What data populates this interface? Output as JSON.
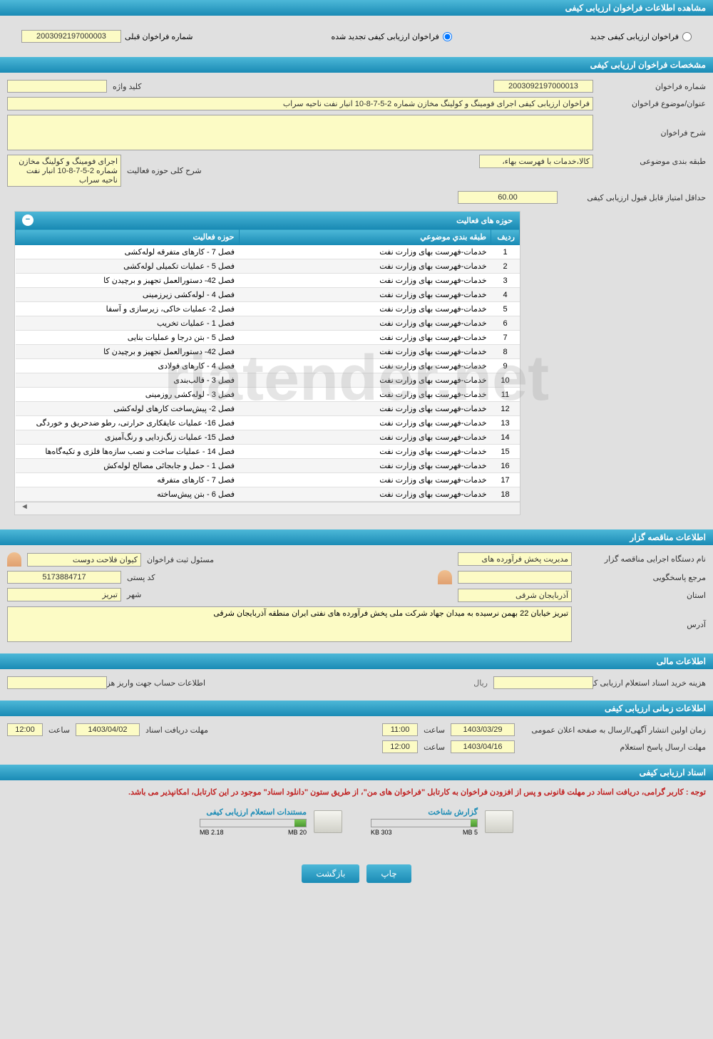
{
  "main_title": "مشاهده اطلاعات فراخوان ارزیابی کیفی",
  "radios": {
    "new": "فراخوان ارزیابی کیفی جدید",
    "renewed": "فراخوان ارزیابی کیفی تجدید شده",
    "prev_label": "شماره فراخوان قبلی",
    "prev_value": "2003092197000003"
  },
  "section1": {
    "title": "مشخصات فراخوان ارزیابی کیفی",
    "call_num_label": "شماره فراخوان",
    "call_num": "2003092197000013",
    "keyword_label": "کلید واژه",
    "keyword": "",
    "subject_label": "عنوان/موضوع فراخوان",
    "subject": "فراخوان ارزیابی کیفی اجرای فومینگ و کولینگ مخازن شماره 2-5-7-8-10 انبار نفت ناحیه سراب",
    "desc_label": "شرح فراخوان",
    "desc": "",
    "category_label": "طبقه بندی موضوعی",
    "category": "کالا،خدمات با فهرست بهاء،",
    "activity_label": "شرح کلی حوزه فعالیت",
    "activity": "اجرای فومینگ و کولینگ مخازن شماره 2-5-7-8-10 انبار نفت ناحیه سراب",
    "min_score_label": "حداقل امتیاز قابل قبول ارزیابی کیفی",
    "min_score": "60.00"
  },
  "grid": {
    "title": "حوزه های فعالیت",
    "col_row": "ردیف",
    "col_category": "طبقه بندي موضوعي",
    "col_activity": "حوزه فعاليت",
    "rows": [
      {
        "n": "1",
        "cat": "خدمات-فهرست بهای وزارت نفت",
        "act": "فصل 7 - کارهای متفرقه لوله‌کشی"
      },
      {
        "n": "2",
        "cat": "خدمات-فهرست بهای وزارت نفت",
        "act": "فصل 5 - عملیات تکمیلی لوله‌کشی"
      },
      {
        "n": "3",
        "cat": "خدمات-فهرست بهای وزارت نفت",
        "act": "فصل 42- دستورالعمل تجهیز و برچیدن کا"
      },
      {
        "n": "4",
        "cat": "خدمات-فهرست بهای وزارت نفت",
        "act": "فصل 4 - لوله‌کشی زیرزمینی"
      },
      {
        "n": "5",
        "cat": "خدمات-فهرست بهای وزارت نفت",
        "act": "فصل 2- عملیات خاکی، زیرسازی و آسفا"
      },
      {
        "n": "6",
        "cat": "خدمات-فهرست بهای وزارت نفت",
        "act": "فصل 1 - عملیات تخریب"
      },
      {
        "n": "7",
        "cat": "خدمات-فهرست بهای وزارت نفت",
        "act": "فصل 5 - بتن درجا و عملیات بنایی"
      },
      {
        "n": "8",
        "cat": "خدمات-فهرست بهای وزارت نفت",
        "act": "فصل 42- دستورالعمل تجهیز و برچیدن کا"
      },
      {
        "n": "9",
        "cat": "خدمات-فهرست بهای وزارت نفت",
        "act": "فصل 4 - کارهای فولادی"
      },
      {
        "n": "10",
        "cat": "خدمات-فهرست بهای وزارت نفت",
        "act": "فصل 3 - قالب‌بندی"
      },
      {
        "n": "11",
        "cat": "خدمات-فهرست بهای وزارت نفت",
        "act": "فصل 3 - لوله‌کشی روزمینی"
      },
      {
        "n": "12",
        "cat": "خدمات-فهرست بهای وزارت نفت",
        "act": "فصل 2- پیش‌ساخت کارهای لوله‌کشی"
      },
      {
        "n": "13",
        "cat": "خدمات-فهرست بهای وزارت نفت",
        "act": "فصل 16- عملیات عایقکاری حرارتی، رطو ضدحریق و خوردگی"
      },
      {
        "n": "14",
        "cat": "خدمات-فهرست بهای وزارت نفت",
        "act": "فصل 15- عملیات زنگ‌زدایی و رنگ‌آمیزی"
      },
      {
        "n": "15",
        "cat": "خدمات-فهرست بهای وزارت نفت",
        "act": "فصل 14 - عملیات ساخت و نصب سازه‌ها فلزی و تکیه‌گاه‌ها"
      },
      {
        "n": "16",
        "cat": "خدمات-فهرست بهای وزارت نفت",
        "act": "فصل 1 - حمل و جابجائی مصالح لوله‌کش"
      },
      {
        "n": "17",
        "cat": "خدمات-فهرست بهای وزارت نفت",
        "act": "فصل 7 - کارهای متفرقه"
      },
      {
        "n": "18",
        "cat": "خدمات-فهرست بهای وزارت نفت",
        "act": "فصل 6 - بتن پیش‌ساخته"
      }
    ]
  },
  "section2": {
    "title": "اطلاعات مناقصه گزار",
    "org_label": "نام دستگاه اجرایی مناقصه گزار",
    "org": "مدیریت پخش فرآورده های",
    "reg_label": "مسئول ثبت فراخوان",
    "reg": "کیوان فلاحت دوست",
    "resp_label": "مرجع پاسخگویی",
    "resp": "",
    "postal_label": "کد پستی",
    "postal": "5173884717",
    "province_label": "استان",
    "province": "آذربایجان شرقی",
    "city_label": "شهر",
    "city": "تبریز",
    "address_label": "آدرس",
    "address": "تبریز خیابان 22 بهمن نرسیده به میدان جهاد شرکت ملی پخش فرآورده های نفتی ایران منطقه آذربایجان شرقی"
  },
  "section3": {
    "title": "اطلاعات مالی",
    "cost_label": "هزینه خرید اسناد استعلام ارزیابی کیفی",
    "cost": "",
    "currency": "ریال",
    "account_label": "اطلاعات حساب جهت واریز هزینه خرید اسناد",
    "account": ""
  },
  "section4": {
    "title": "اطلاعات زمانی ارزیابی کیفی",
    "first_pub_label": "زمان اولین انتشار آگهی/ارسال به صفحه اعلان عمومی",
    "first_pub_date": "1403/03/29",
    "first_pub_time": "11:00",
    "time_label": "ساعت",
    "deadline_label": "مهلت دریافت اسناد",
    "deadline_date": "1403/04/02",
    "deadline_time": "12:00",
    "response_label": "مهلت ارسال پاسخ استعلام",
    "response_date": "1403/04/16",
    "response_time": "12:00"
  },
  "section5": {
    "title": "اسناد ارزیابی کیفی",
    "notice": "توجه : کاربر گرامی، دریافت اسناد در مهلت قانونی و پس از افزودن فراخوان به کارتابل \"فراخوان های من\"، از طریق ستون \"دانلود اسناد\" موجود در این کارتابل، امکانپذیر می باشد.",
    "file1_title": "گزارش شناخت",
    "file1_size": "303 KB",
    "file1_total": "5 MB",
    "file1_pct": 6,
    "file2_title": "مستندات استعلام ارزیابی کیفی",
    "file2_size": "2.18 MB",
    "file2_total": "20 MB",
    "file2_pct": 11
  },
  "buttons": {
    "print": "چاپ",
    "back": "بازگشت"
  },
  "colors": {
    "header_bg": "#2a9bc5",
    "field_bg": "#fcfbc5",
    "body_bg": "#e0e0e0"
  }
}
